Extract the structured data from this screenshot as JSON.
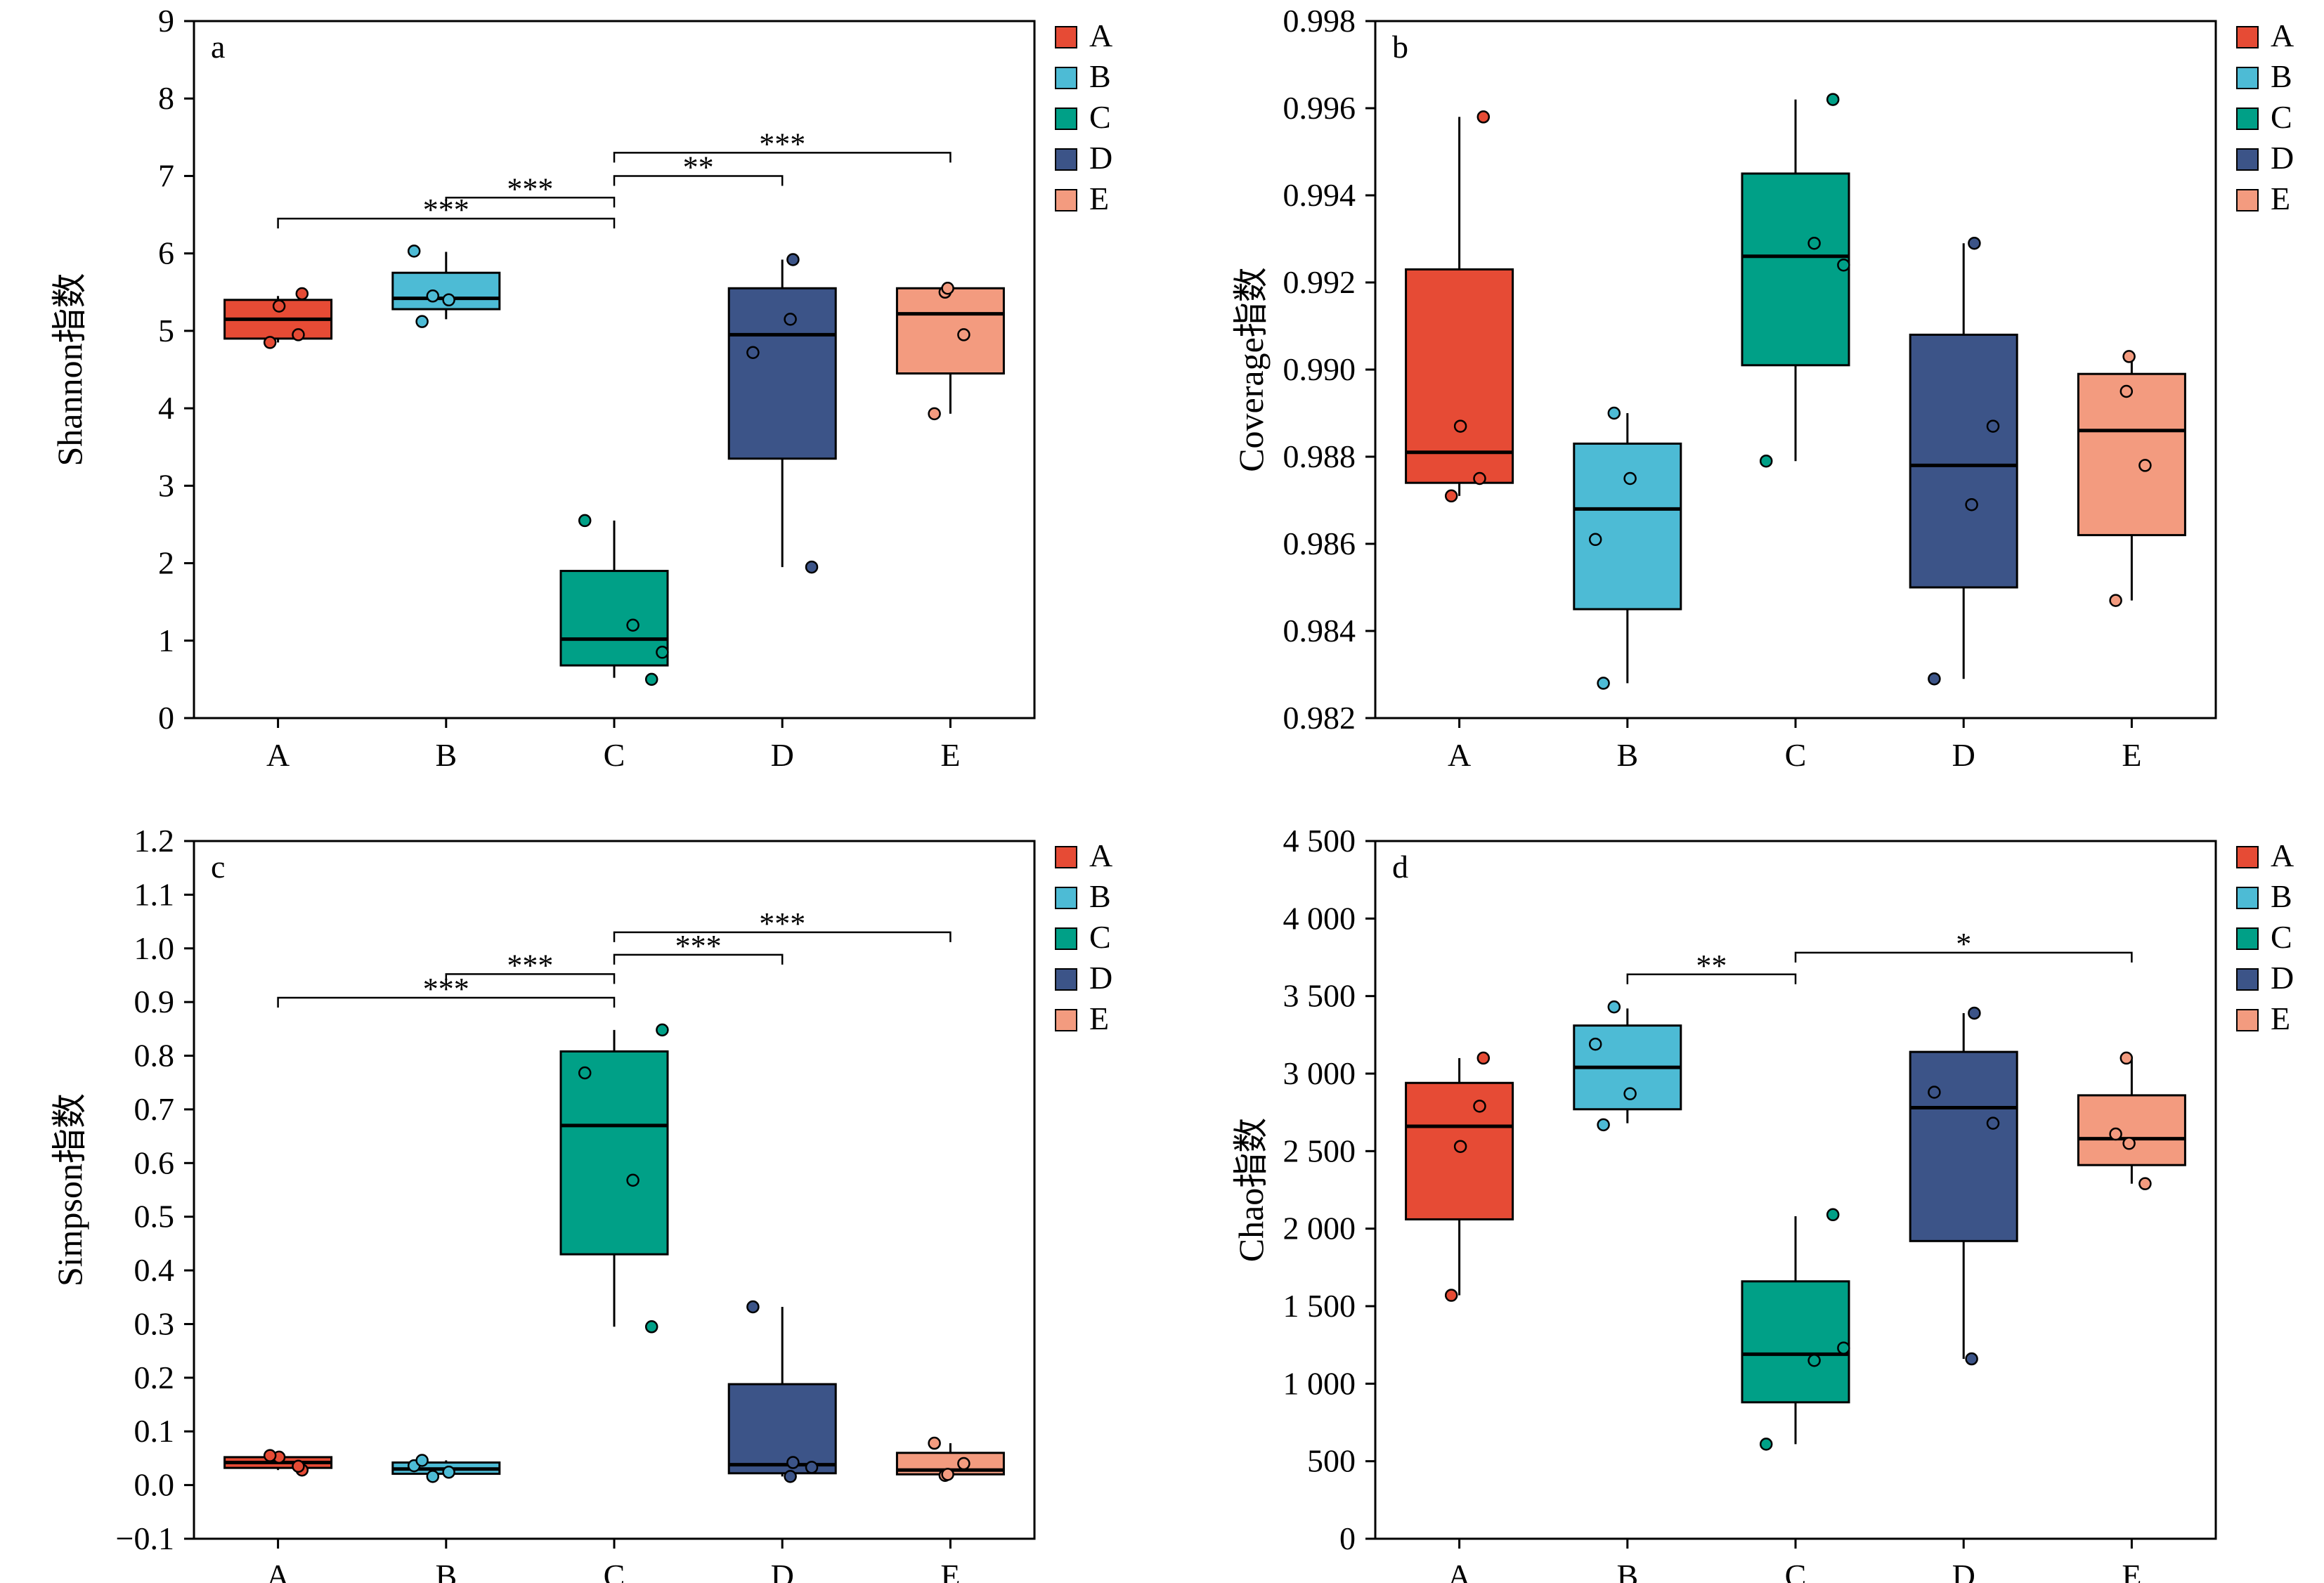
{
  "colors": {
    "A": "#E64B35",
    "B": "#4DBBD5",
    "C": "#00A087",
    "D": "#3C5488",
    "E": "#F39B7F"
  },
  "legend": [
    "A",
    "B",
    "C",
    "D",
    "E"
  ],
  "chart_data": [
    {
      "type": "box",
      "panel_label": "a",
      "ylabel": "Shannon指数",
      "ylim": [
        0,
        9
      ],
      "yticks": [
        "0",
        "1",
        "2",
        "3",
        "4",
        "5",
        "6",
        "7",
        "8",
        "9"
      ],
      "categories": [
        "A",
        "B",
        "C",
        "D",
        "E"
      ],
      "boxes": [
        {
          "name": "A",
          "whisker_low": 4.85,
          "q1": 4.9,
          "median": 5.15,
          "q3": 5.4,
          "whisker_high": 5.45,
          "points": [
            5.32,
            5.48,
            4.85,
            4.95
          ]
        },
        {
          "name": "B",
          "whisker_low": 5.15,
          "q1": 5.28,
          "median": 5.42,
          "q3": 5.75,
          "whisker_high": 6.02,
          "points": [
            6.03,
            5.45,
            5.12,
            5.4
          ]
        },
        {
          "name": "C",
          "whisker_low": 0.52,
          "q1": 0.68,
          "median": 1.02,
          "q3": 1.9,
          "whisker_high": 2.55,
          "points": [
            2.55,
            1.2,
            0.5,
            0.85
          ]
        },
        {
          "name": "D",
          "whisker_low": 1.95,
          "q1": 3.35,
          "median": 4.95,
          "q3": 5.55,
          "whisker_high": 5.92,
          "points": [
            4.72,
            5.15,
            5.92,
            1.95
          ]
        },
        {
          "name": "E",
          "whisker_low": 3.93,
          "q1": 4.45,
          "median": 5.22,
          "q3": 5.55,
          "whisker_high": 5.55,
          "points": [
            3.93,
            5.5,
            5.55,
            4.95
          ]
        }
      ],
      "significance": [
        {
          "from": "A",
          "to": "C",
          "y": 6.45,
          "label": "***"
        },
        {
          "from": "B",
          "to": "C",
          "y": 6.72,
          "label": "***"
        },
        {
          "from": "C",
          "to": "D",
          "y": 7.0,
          "label": "**"
        },
        {
          "from": "C",
          "to": "E",
          "y": 7.3,
          "label": "***"
        }
      ]
    },
    {
      "type": "box",
      "panel_label": "b",
      "ylabel": "Coverage指数",
      "ylim": [
        0.982,
        0.998
      ],
      "yticks": [
        "0.982",
        "0.984",
        "0.986",
        "0.988",
        "0.990",
        "0.992",
        "0.994",
        "0.996",
        "0.998"
      ],
      "categories": [
        "A",
        "B",
        "C",
        "D",
        "E"
      ],
      "boxes": [
        {
          "name": "A",
          "whisker_low": 0.9871,
          "q1": 0.9874,
          "median": 0.9881,
          "q3": 0.9923,
          "whisker_high": 0.9958,
          "points": [
            0.9887,
            0.9958,
            0.9871,
            0.9875
          ]
        },
        {
          "name": "B",
          "whisker_low": 0.9828,
          "q1": 0.9845,
          "median": 0.9868,
          "q3": 0.9883,
          "whisker_high": 0.989,
          "points": [
            0.9861,
            0.989,
            0.9828,
            0.9875
          ]
        },
        {
          "name": "C",
          "whisker_low": 0.9879,
          "q1": 0.9901,
          "median": 0.9926,
          "q3": 0.9945,
          "whisker_high": 0.9962,
          "points": [
            0.9879,
            0.9929,
            0.9962,
            0.9924
          ]
        },
        {
          "name": "D",
          "whisker_low": 0.9829,
          "q1": 0.985,
          "median": 0.9878,
          "q3": 0.9908,
          "whisker_high": 0.9929,
          "points": [
            0.9829,
            0.9869,
            0.9929,
            0.9887
          ]
        },
        {
          "name": "E",
          "whisker_low": 0.9847,
          "q1": 0.9862,
          "median": 0.9886,
          "q3": 0.9899,
          "whisker_high": 0.9903,
          "points": [
            0.9847,
            0.9895,
            0.9903,
            0.9878
          ]
        }
      ],
      "significance": []
    },
    {
      "type": "box",
      "panel_label": "c",
      "ylabel": "Simpson指数",
      "ylim": [
        -0.1,
        1.2
      ],
      "yticks": [
        "−0.1",
        "0.0",
        "0.1",
        "0.2",
        "0.3",
        "0.4",
        "0.5",
        "0.6",
        "0.7",
        "0.8",
        "0.9",
        "1.0",
        "1.1",
        "1.2"
      ],
      "categories": [
        "A",
        "B",
        "C",
        "D",
        "E"
      ],
      "boxes": [
        {
          "name": "A",
          "whisker_low": 0.028,
          "q1": 0.032,
          "median": 0.042,
          "q3": 0.052,
          "whisker_high": 0.055,
          "points": [
            0.052,
            0.028,
            0.055,
            0.035
          ]
        },
        {
          "name": "B",
          "whisker_low": 0.016,
          "q1": 0.021,
          "median": 0.03,
          "q3": 0.042,
          "whisker_high": 0.046,
          "points": [
            0.036,
            0.016,
            0.046,
            0.024
          ]
        },
        {
          "name": "C",
          "whisker_low": 0.295,
          "q1": 0.43,
          "median": 0.67,
          "q3": 0.808,
          "whisker_high": 0.848,
          "points": [
            0.768,
            0.568,
            0.295,
            0.848
          ]
        },
        {
          "name": "D",
          "whisker_low": 0.016,
          "q1": 0.022,
          "median": 0.038,
          "q3": 0.188,
          "whisker_high": 0.332,
          "points": [
            0.332,
            0.016,
            0.042,
            0.033
          ]
        },
        {
          "name": "E",
          "whisker_low": 0.018,
          "q1": 0.02,
          "median": 0.028,
          "q3": 0.06,
          "whisker_high": 0.078,
          "points": [
            0.078,
            0.018,
            0.02,
            0.04
          ]
        }
      ],
      "significance": [
        {
          "from": "A",
          "to": "C",
          "y": 0.908,
          "label": "***"
        },
        {
          "from": "B",
          "to": "C",
          "y": 0.952,
          "label": "***"
        },
        {
          "from": "C",
          "to": "D",
          "y": 0.988,
          "label": "***"
        },
        {
          "from": "C",
          "to": "E",
          "y": 1.03,
          "label": "***"
        }
      ]
    },
    {
      "type": "box",
      "panel_label": "d",
      "ylabel": "Chao指数",
      "ylim": [
        0,
        4500
      ],
      "yticks": [
        "0",
        "500",
        "1 000",
        "1 500",
        "2 000",
        "2 500",
        "3 000",
        "3 500",
        "4 000",
        "4 500"
      ],
      "categories": [
        "A",
        "B",
        "C",
        "D",
        "E"
      ],
      "boxes": [
        {
          "name": "A",
          "whisker_low": 1570,
          "q1": 2060,
          "median": 2660,
          "q3": 2940,
          "whisker_high": 3100,
          "points": [
            2530,
            3100,
            1570,
            2790
          ]
        },
        {
          "name": "B",
          "whisker_low": 2680,
          "q1": 2770,
          "median": 3040,
          "q3": 3310,
          "whisker_high": 3420,
          "points": [
            3190,
            3430,
            2670,
            2870
          ]
        },
        {
          "name": "C",
          "whisker_low": 610,
          "q1": 880,
          "median": 1190,
          "q3": 1660,
          "whisker_high": 2080,
          "points": [
            610,
            1150,
            2090,
            1230
          ]
        },
        {
          "name": "D",
          "whisker_low": 1160,
          "q1": 1920,
          "median": 2780,
          "q3": 3140,
          "whisker_high": 3390,
          "points": [
            2880,
            1160,
            3390,
            2680
          ]
        },
        {
          "name": "E",
          "whisker_low": 2290,
          "q1": 2410,
          "median": 2580,
          "q3": 2860,
          "whisker_high": 3090,
          "points": [
            2610,
            3100,
            2550,
            2290
          ]
        }
      ],
      "significance": [
        {
          "from": "B",
          "to": "C",
          "y": 3640,
          "label": "**"
        },
        {
          "from": "C",
          "to": "E",
          "y": 3780,
          "label": "*"
        }
      ]
    }
  ]
}
